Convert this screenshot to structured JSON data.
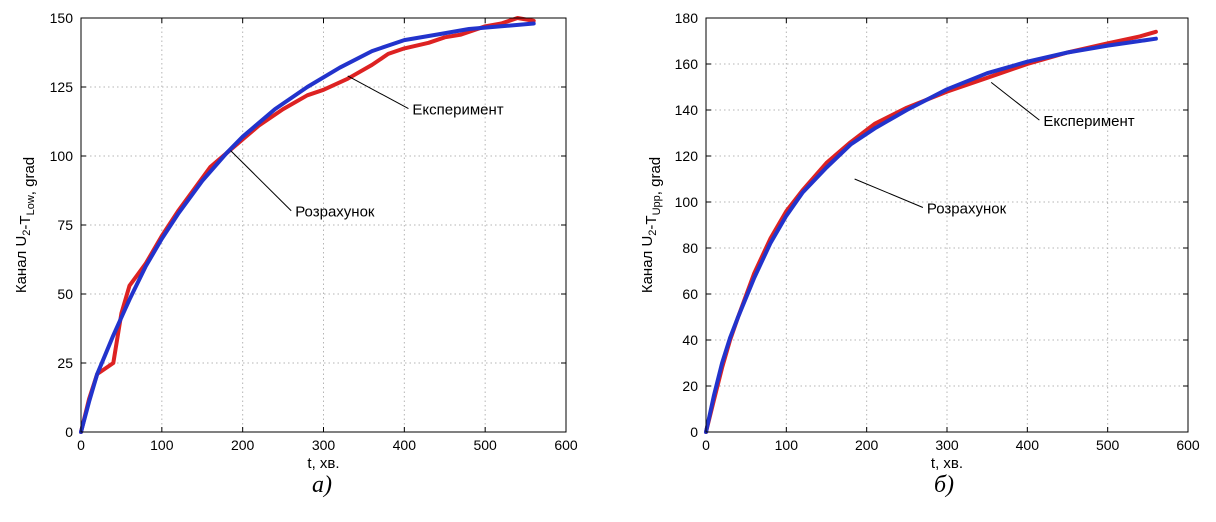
{
  "chart_data": [
    {
      "type": "line",
      "caption": "а)",
      "xlabel": "t, хв.",
      "ylabel": {
        "main": "Канал U",
        "sub1": "2",
        "mid": "-T",
        "sub2": "Low",
        "end": ", grad"
      },
      "xlim": [
        0,
        600
      ],
      "ylim": [
        0,
        150
      ],
      "xticks": [
        0,
        100,
        200,
        300,
        400,
        500,
        600
      ],
      "yticks": [
        0,
        25,
        50,
        75,
        100,
        125,
        150
      ],
      "grid": true,
      "annotations": [
        {
          "text": "Експеримент",
          "x": 410,
          "y": 115,
          "arrow_to": [
            330,
            129
          ]
        },
        {
          "text": "Розрахунок",
          "x": 265,
          "y": 78,
          "arrow_to": [
            185,
            102
          ]
        }
      ],
      "series": [
        {
          "role": "experiment",
          "color": "#dd2222",
          "x": [
            0,
            10,
            20,
            30,
            40,
            50,
            60,
            70,
            80,
            100,
            120,
            140,
            160,
            180,
            200,
            220,
            250,
            280,
            300,
            330,
            360,
            380,
            400,
            430,
            450,
            470,
            500,
            520,
            540,
            560
          ],
          "y": [
            0,
            12,
            21,
            23,
            25,
            43,
            53,
            57,
            61,
            71,
            80,
            88,
            96,
            101,
            106,
            111,
            117,
            122,
            124,
            128,
            133,
            137,
            139,
            141,
            143,
            144,
            147,
            148,
            150,
            149
          ]
        },
        {
          "role": "calculation",
          "color": "#2233cc",
          "x": [
            0,
            10,
            20,
            30,
            40,
            60,
            80,
            100,
            120,
            150,
            180,
            200,
            240,
            280,
            320,
            360,
            400,
            440,
            480,
            520,
            560
          ],
          "y": [
            0,
            11,
            21,
            28,
            35,
            48,
            60,
            70,
            79,
            91,
            101,
            107,
            117,
            125,
            132,
            138,
            142,
            144,
            146,
            147,
            148
          ]
        }
      ]
    },
    {
      "type": "line",
      "caption": "б)",
      "xlabel": "t, хв.",
      "ylabel": {
        "main": "Канал U",
        "sub1": "2",
        "mid": "-T",
        "sub2": "Upp",
        "end": ", grad"
      },
      "xlim": [
        0,
        600
      ],
      "ylim": [
        0,
        180
      ],
      "xticks": [
        0,
        100,
        200,
        300,
        400,
        500,
        600
      ],
      "yticks": [
        0,
        20,
        40,
        60,
        80,
        100,
        120,
        140,
        160,
        180
      ],
      "grid": true,
      "annotations": [
        {
          "text": "Експеримент",
          "x": 420,
          "y": 133,
          "arrow_to": [
            355,
            152
          ]
        },
        {
          "text": "Розрахунок",
          "x": 275,
          "y": 95,
          "arrow_to": [
            185,
            110
          ]
        }
      ],
      "series": [
        {
          "role": "experiment",
          "color": "#dd2222",
          "x": [
            0,
            10,
            20,
            30,
            40,
            60,
            80,
            100,
            120,
            150,
            180,
            210,
            250,
            300,
            350,
            400,
            450,
            500,
            540,
            560
          ],
          "y": [
            0,
            14,
            28,
            40,
            50,
            69,
            84,
            96,
            105,
            117,
            126,
            134,
            141,
            148,
            154,
            160,
            165,
            169,
            172,
            174
          ]
        },
        {
          "role": "calculation",
          "color": "#2233cc",
          "x": [
            0,
            10,
            20,
            30,
            40,
            60,
            80,
            100,
            120,
            150,
            180,
            210,
            250,
            300,
            350,
            400,
            450,
            500,
            540,
            560
          ],
          "y": [
            0,
            16,
            30,
            41,
            50,
            67,
            82,
            94,
            104,
            115,
            125,
            132,
            140,
            149,
            156,
            161,
            165,
            168,
            170,
            171
          ]
        }
      ]
    }
  ]
}
